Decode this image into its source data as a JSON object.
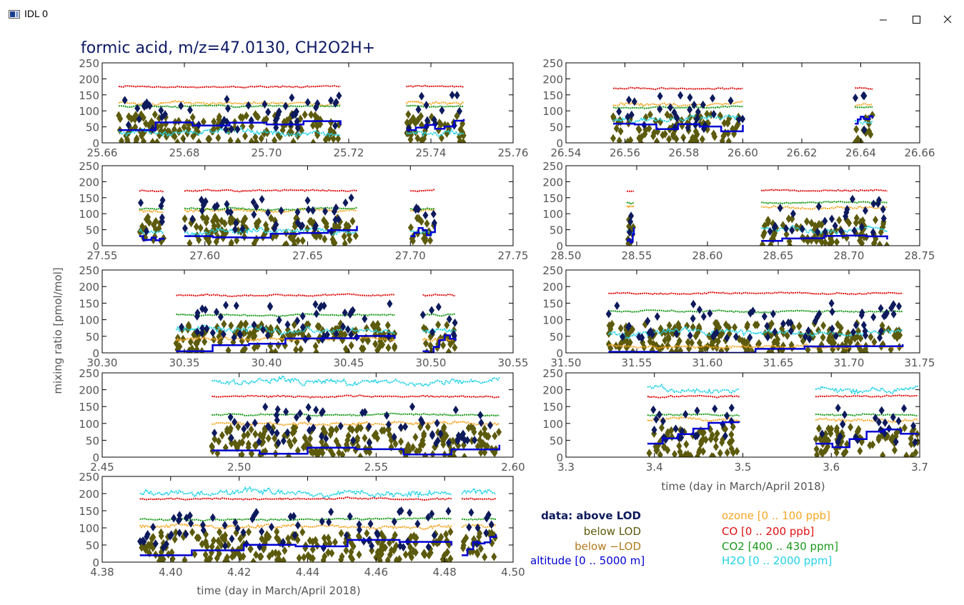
{
  "window": {
    "title": "IDL 0"
  },
  "figure": {
    "title": "formic acid, m/z=47.0130, CH2O2H+",
    "ylabel": "mixing ratio [pmol/mol]",
    "xlabel": "time (day in March/April 2018)"
  },
  "legend": {
    "left": [
      {
        "text": "data: above LOD",
        "color": "#0d1a5c"
      },
      {
        "text": "below LOD",
        "color": "#5c5a0c"
      },
      {
        "text": "below −LOD",
        "color": "#b07a1a"
      },
      {
        "text": "altitude [0 .. 5000 m]",
        "color": "#0000d0"
      }
    ],
    "right": [
      {
        "text": "ozone [0 .. 100 ppb]",
        "color": "#f5a623"
      },
      {
        "text": "CO [0 .. 200 ppb]",
        "color": "#e01010"
      },
      {
        "text": "CO2 [400 .. 430 ppm]",
        "color": "#1a9a1a"
      },
      {
        "text": "H2O [0 .. 2000 ppm]",
        "color": "#22d2e6"
      }
    ]
  },
  "colors": {
    "above_lod": "#0d1a5c",
    "below_lod": "#5c5a0c",
    "altitude": "#0000d0",
    "ozone": "#f5a623",
    "co": "#e01010",
    "co2": "#1a9a1a",
    "h2o": "#22d2e6"
  },
  "chart_data": [
    {
      "type": "scatter",
      "xlim": [
        25.66,
        25.76
      ],
      "ylim": [
        0,
        250
      ],
      "xticks": [
        "25.66",
        "25.68",
        "25.70",
        "25.72",
        "25.74",
        "25.76"
      ],
      "yticks": [
        "0",
        "50",
        "100",
        "150",
        "200",
        "250"
      ],
      "segments": [
        [
          25.664,
          25.718
        ],
        [
          25.734,
          25.748
        ]
      ],
      "levels": {
        "co": 175,
        "co2": 115,
        "ozone": 125,
        "h2o": 30,
        "alt": 40
      }
    },
    {
      "type": "scatter",
      "xlim": [
        26.54,
        26.66
      ],
      "ylim": [
        0,
        250
      ],
      "xticks": [
        "26.54",
        "26.56",
        "26.58",
        "26.60",
        "26.62",
        "26.64",
        "26.66"
      ],
      "yticks": [
        "0",
        "50",
        "100",
        "150",
        "200",
        "250"
      ],
      "segments": [
        [
          26.556,
          26.6
        ],
        [
          26.638,
          26.644
        ]
      ],
      "levels": {
        "co": 170,
        "co2": 112,
        "ozone": 118,
        "h2o": 70,
        "alt": 60
      }
    },
    {
      "type": "scatter",
      "xlim": [
        27.55,
        27.75
      ],
      "ylim": [
        0,
        250
      ],
      "xticks": [
        "27.55",
        "27.60",
        "27.65",
        "27.70",
        "27.75"
      ],
      "yticks": [
        "0",
        "50",
        "100",
        "150",
        "200",
        "250"
      ],
      "segments": [
        [
          27.568,
          27.58
        ],
        [
          27.59,
          27.674
        ],
        [
          27.7,
          27.712
        ]
      ],
      "levels": {
        "co": 172,
        "co2": 115,
        "ozone": 110,
        "h2o": 45,
        "alt": 30
      }
    },
    {
      "type": "scatter",
      "xlim": [
        28.5,
        28.75
      ],
      "ylim": [
        0,
        250
      ],
      "xticks": [
        "28.50",
        "28.55",
        "28.60",
        "28.65",
        "28.70",
        "28.75"
      ],
      "yticks": [
        "0",
        "50",
        "100",
        "150",
        "200",
        "250"
      ],
      "segments": [
        [
          28.543,
          28.548
        ],
        [
          28.638,
          28.727
        ]
      ],
      "levels": {
        "co": 172,
        "co2": 135,
        "ozone": 120,
        "h2o": 50,
        "alt": 15
      }
    },
    {
      "type": "scatter",
      "xlim": [
        30.3,
        30.55
      ],
      "ylim": [
        0,
        250
      ],
      "xticks": [
        "30.30",
        "30.35",
        "30.40",
        "30.45",
        "30.50",
        "30.55"
      ],
      "yticks": [
        "0",
        "50",
        "100",
        "150",
        "200",
        "250"
      ],
      "segments": [
        [
          30.345,
          30.478
        ],
        [
          30.495,
          30.515
        ]
      ],
      "levels": {
        "co": 175,
        "co2": 115,
        "ozone": 40,
        "h2o": 70,
        "alt": 5
      }
    },
    {
      "type": "scatter",
      "xlim": [
        31.5,
        31.75
      ],
      "ylim": [
        0,
        250
      ],
      "xticks": [
        "31.50",
        "31.55",
        "31.60",
        "31.65",
        "31.70",
        "31.75"
      ],
      "yticks": [
        "0",
        "50",
        "100",
        "150",
        "200",
        "250"
      ],
      "segments": [
        [
          31.53,
          31.738
        ]
      ],
      "levels": {
        "co": 180,
        "co2": 125,
        "ozone": 20,
        "h2o": 60,
        "alt": 3
      }
    },
    {
      "type": "scatter",
      "xlim": [
        2.45,
        2.6
      ],
      "ylim": [
        0,
        250
      ],
      "xticks": [
        "2.45",
        "2.50",
        "2.55",
        "2.60"
      ],
      "yticks": [
        "0",
        "50",
        "100",
        "150",
        "200",
        "250"
      ],
      "segments": [
        [
          2.49,
          2.595
        ]
      ],
      "levels": {
        "co": 180,
        "co2": 125,
        "ozone": 100,
        "h2o": 220,
        "alt": 20
      }
    },
    {
      "type": "scatter",
      "xlim": [
        3.3,
        3.7
      ],
      "ylim": [
        0,
        250
      ],
      "xticks": [
        "3.3",
        "3.4",
        "3.5",
        "3.6",
        "3.7"
      ],
      "yticks": [
        "0",
        "50",
        "100",
        "150",
        "200",
        "250"
      ],
      "segments": [
        [
          3.392,
          3.496
        ],
        [
          3.582,
          3.698
        ]
      ],
      "levels": {
        "co": 180,
        "co2": 125,
        "ozone": 110,
        "h2o": 200,
        "alt": 40
      }
    },
    {
      "type": "scatter",
      "xlim": [
        4.38,
        4.5
      ],
      "ylim": [
        0,
        250
      ],
      "xticks": [
        "4.38",
        "4.40",
        "4.42",
        "4.44",
        "4.46",
        "4.48",
        "4.50"
      ],
      "yticks": [
        "0",
        "50",
        "100",
        "150",
        "200",
        "250"
      ],
      "segments": [
        [
          4.391,
          4.482
        ],
        [
          4.485,
          4.495
        ]
      ],
      "levels": {
        "co": 185,
        "co2": 125,
        "ozone": 105,
        "h2o": 200,
        "alt": 20
      }
    }
  ]
}
